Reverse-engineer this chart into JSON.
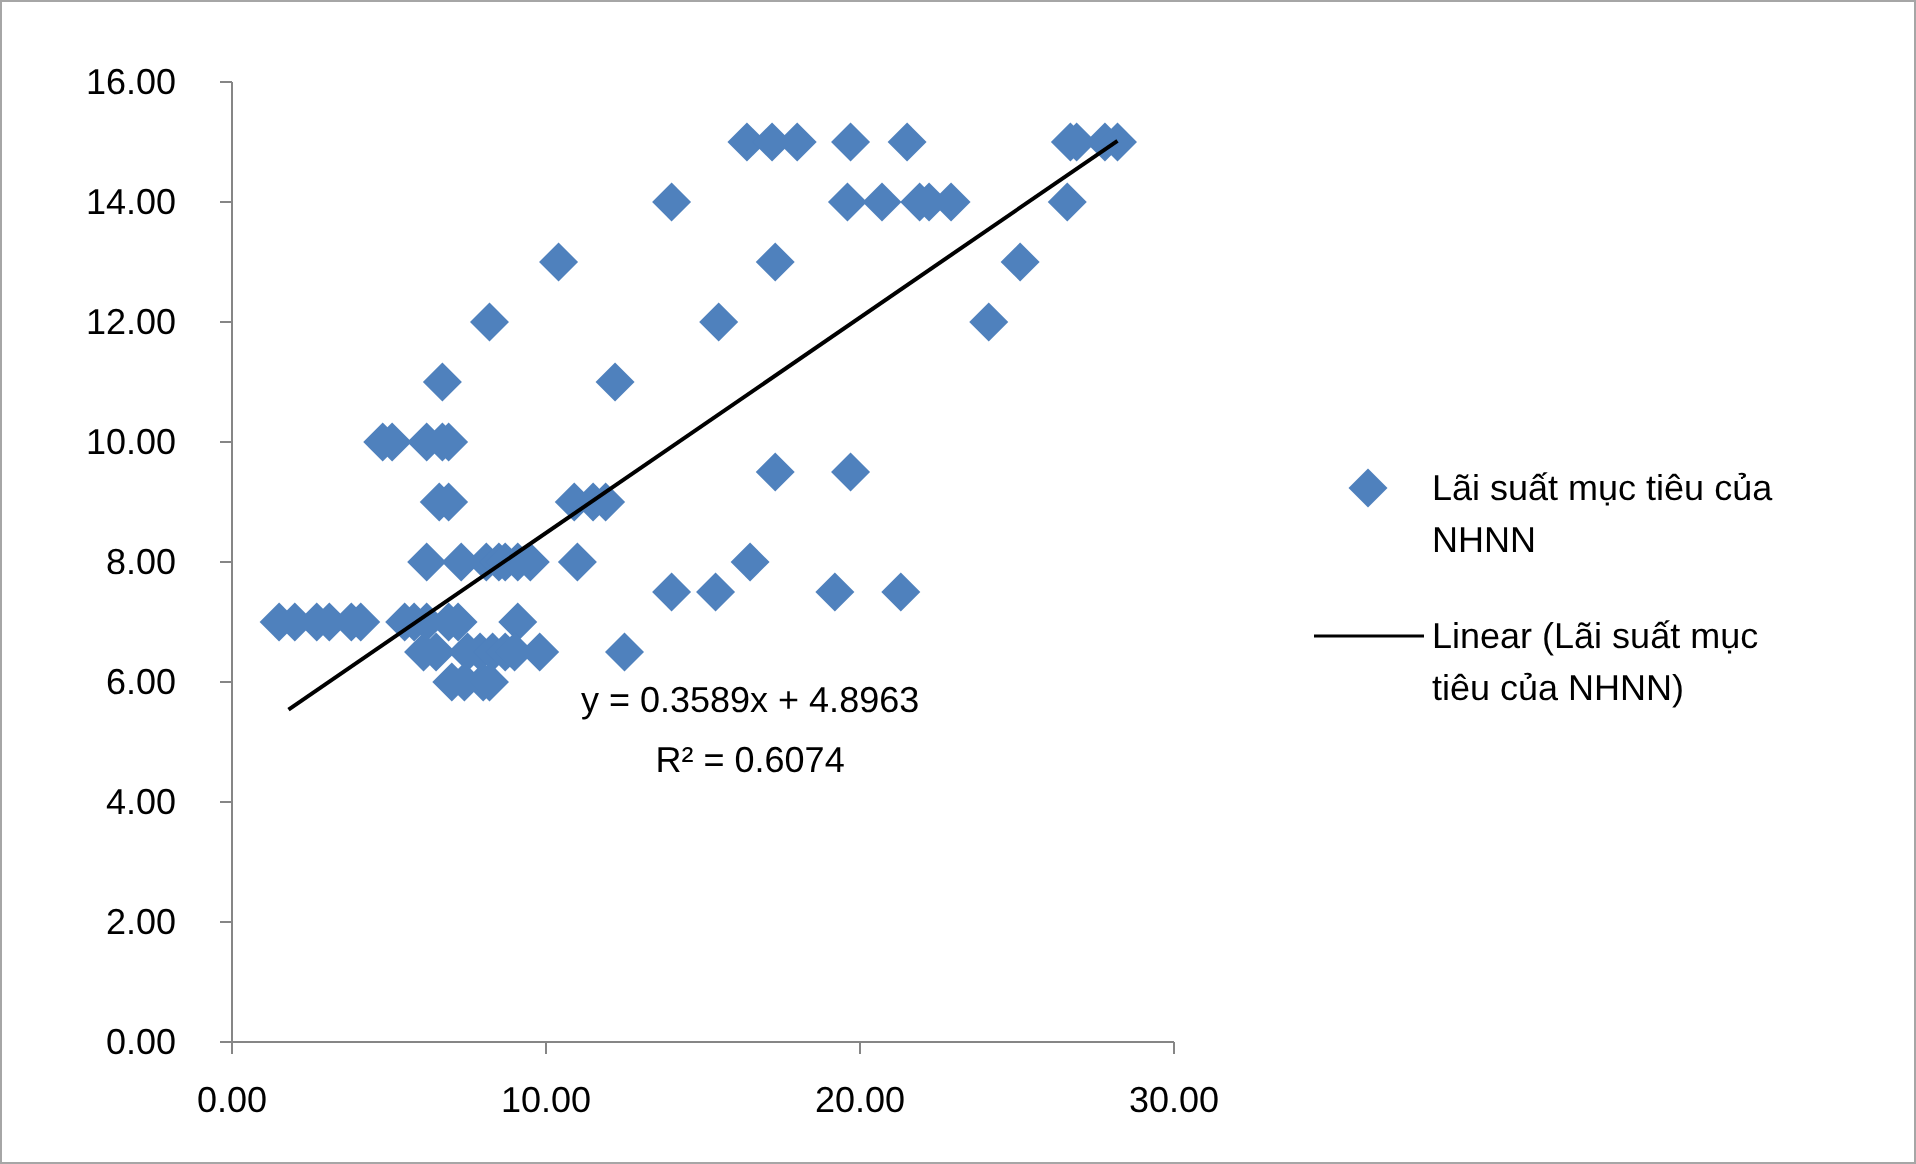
{
  "chart_data": {
    "type": "scatter",
    "xlim": [
      0,
      30
    ],
    "xticks": [
      {
        "value": 0,
        "label": "0.00"
      },
      {
        "value": 10,
        "label": "10.00"
      },
      {
        "value": 20,
        "label": "20.00"
      },
      {
        "value": 30,
        "label": "30.00"
      }
    ],
    "ylim": [
      0,
      16
    ],
    "yticks": [
      {
        "value": 0,
        "label": "0.00"
      },
      {
        "value": 2,
        "label": "2.00"
      },
      {
        "value": 4,
        "label": "4.00"
      },
      {
        "value": 6,
        "label": "6.00"
      },
      {
        "value": 8,
        "label": "8.00"
      },
      {
        "value": 10,
        "label": "10.00"
      },
      {
        "value": 12,
        "label": "12.00"
      },
      {
        "value": 14,
        "label": "14.00"
      },
      {
        "value": 16,
        "label": "16.00"
      }
    ],
    "grid": false,
    "legend": "right",
    "marker": "diamond",
    "series": [
      {
        "name": "Lãi suất mục tiêu của NHNN",
        "color": "#4f81bd",
        "x": [
          16.4,
          17.2,
          18.0,
          19.7,
          21.5,
          26.7,
          26.9,
          27.8,
          28.2,
          14.0,
          19.6,
          20.7,
          21.9,
          22.2,
          22.9,
          26.6,
          10.4,
          17.3,
          25.1,
          8.2,
          15.5,
          24.1,
          6.7,
          12.2,
          4.8,
          5.1,
          6.2,
          6.7,
          6.9,
          17.3,
          19.7,
          6.6,
          6.9,
          10.9,
          11.5,
          11.9,
          6.2,
          7.3,
          8.1,
          8.5,
          8.7,
          9.1,
          9.5,
          11.0,
          16.5,
          14.0,
          15.4,
          19.2,
          21.3,
          1.5,
          2.0,
          2.7,
          3.1,
          3.8,
          4.1,
          5.5,
          5.8,
          6.2,
          6.9,
          7.2,
          9.1,
          6.1,
          6.5,
          7.5,
          7.9,
          8.3,
          8.7,
          9.0,
          9.8,
          12.5,
          7.0,
          7.4,
          8.0,
          8.2
        ],
        "values": [
          15,
          15,
          15,
          15,
          15,
          15,
          15,
          15,
          15,
          14,
          14,
          14,
          14,
          14,
          14,
          14,
          13,
          13,
          13,
          12,
          12,
          12,
          11,
          11,
          10,
          10,
          10,
          10,
          10,
          9.5,
          9.5,
          9,
          9,
          9,
          9,
          9,
          8,
          8,
          8,
          8,
          8,
          8,
          8,
          8,
          8,
          7.5,
          7.5,
          7.5,
          7.5,
          7,
          7,
          7,
          7,
          7,
          7,
          7,
          7,
          7,
          7,
          7,
          7,
          6.5,
          6.5,
          6.5,
          6.5,
          6.5,
          6.5,
          6.5,
          6.5,
          6.5,
          6,
          6,
          6,
          6
        ]
      },
      {
        "name": "Linear (Lãi suất mục tiêu của NHNN)",
        "type": "line",
        "color": "#000000",
        "marker": "none",
        "line_style": "solid",
        "x": [
          1.8,
          28.2
        ],
        "values": [
          5.54,
          15.02
        ]
      }
    ],
    "annotations": [
      "y = 0.3589x + 4.8963",
      "R² = 0.6074"
    ]
  }
}
